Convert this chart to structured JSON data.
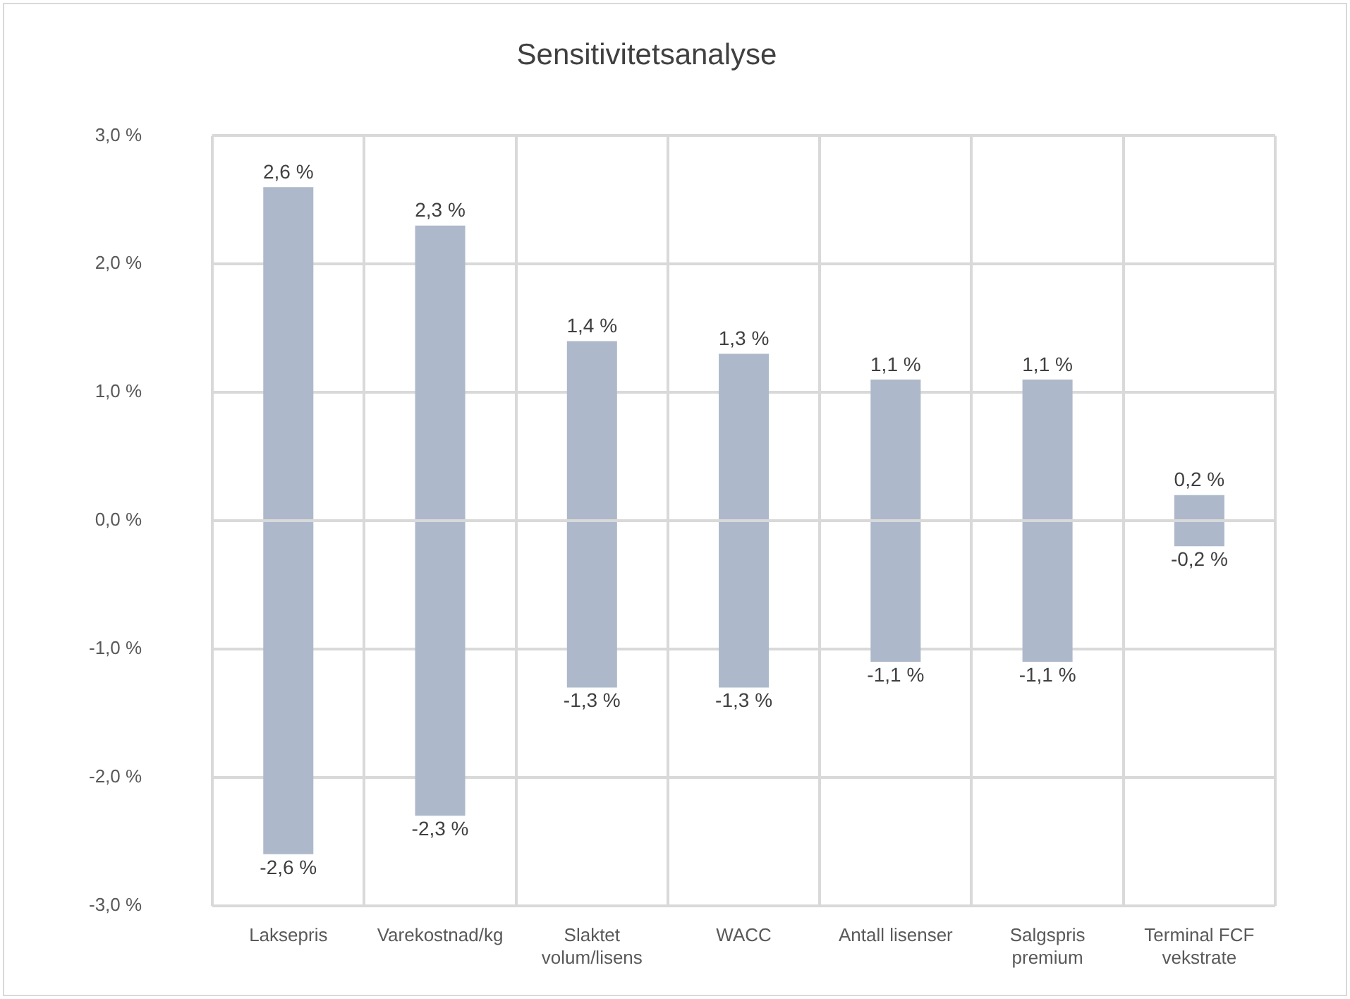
{
  "chart_data": {
    "type": "bar",
    "title": "Sensitivitetsanalyse",
    "categories": [
      "Laksepris",
      "Varekostnad/kg",
      "Slaktet volum/lisens",
      "WACC",
      "Antall lisenser",
      "Salgspris premium",
      "Terminal FCF vekstrate"
    ],
    "stacked": true,
    "series": [
      {
        "color": "#adb9ca",
        "values": [
          2.6,
          2.3,
          1.4,
          1.3,
          1.1,
          1.1,
          0.2
        ],
        "value_labels": [
          "2,6 %",
          "2,3 %",
          "1,4 %",
          "1,3 %",
          "1,1 %",
          "1,1 %",
          "0,2 %"
        ]
      },
      {
        "color": "#adb9ca",
        "values": [
          -2.6,
          -2.3,
          -1.3,
          -1.3,
          -1.1,
          -1.1,
          -0.2
        ],
        "value_labels": [
          "-2,6 %",
          "-2,3 %",
          "-1,3 %",
          "-1,3 %",
          "-1,1 %",
          "-1,1 %",
          "-0,2 %"
        ]
      }
    ],
    "ylim": [
      -3,
      3
    ],
    "yticks": [
      {
        "value": -3,
        "label": "-3,0 %"
      },
      {
        "value": -2,
        "label": "-2,0 %"
      },
      {
        "value": -1,
        "label": "-1,0 %"
      },
      {
        "value": 0,
        "label": "0,0 %"
      },
      {
        "value": 1,
        "label": "1,0 %"
      },
      {
        "value": 2,
        "label": "2,0 %"
      },
      {
        "value": 3,
        "label": "3,0 %"
      }
    ],
    "grid": true,
    "legend": false
  }
}
